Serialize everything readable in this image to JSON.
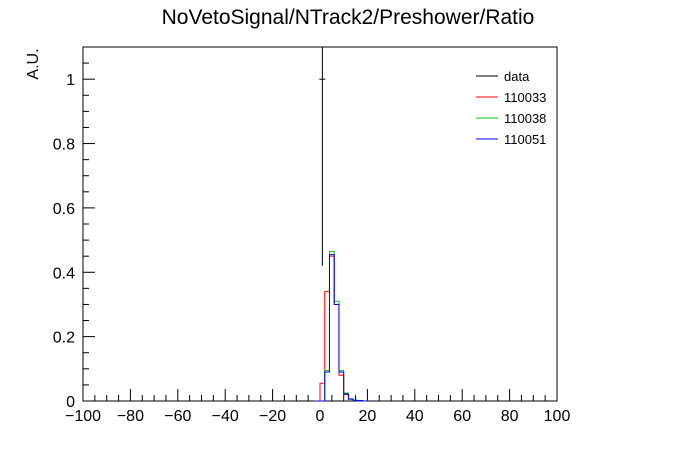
{
  "chart_data": {
    "type": "histogram",
    "title": "NoVetoSignal/NTrack2/Preshower/Ratio",
    "xlabel": "",
    "ylabel": "A.U.",
    "xlim": [
      -100,
      100
    ],
    "ylim": [
      0,
      1.1
    ],
    "x_ticks": [
      "−100",
      "−80",
      "−60",
      "−40",
      "−20",
      "0",
      "20",
      "40",
      "60",
      "80",
      "100"
    ],
    "y_ticks": [
      "0",
      "0.2",
      "0.4",
      "0.6",
      "0.8",
      "1"
    ],
    "legend": {
      "placement": "top-right"
    },
    "bin_edges": [
      -2,
      0,
      2,
      4,
      6,
      8,
      10,
      12,
      14,
      16,
      18,
      20
    ],
    "data_points": [
      {
        "x": 1,
        "y": 1.0
      }
    ],
    "data_point_range": [
      0.42,
      1.1
    ],
    "series": [
      {
        "name": "data",
        "color": "#000000",
        "kind": "points"
      },
      {
        "name": "110033",
        "color": "#ff0000",
        "kind": "hist",
        "values": [
          0.0,
          0.055,
          0.34,
          0.45,
          0.3,
          0.08,
          0.02,
          0.006,
          0.002,
          0.001,
          0.0
        ]
      },
      {
        "name": "110038",
        "color": "#00cc00",
        "kind": "hist",
        "values": [
          0.0,
          0.0,
          0.095,
          0.465,
          0.31,
          0.095,
          0.025,
          0.007,
          0.002,
          0.001,
          0.0
        ]
      },
      {
        "name": "110051",
        "color": "#0000ff",
        "kind": "hist",
        "values": [
          0.0,
          0.0,
          0.09,
          0.455,
          0.3,
          0.09,
          0.022,
          0.006,
          0.002,
          0.001,
          0.0
        ]
      }
    ]
  }
}
